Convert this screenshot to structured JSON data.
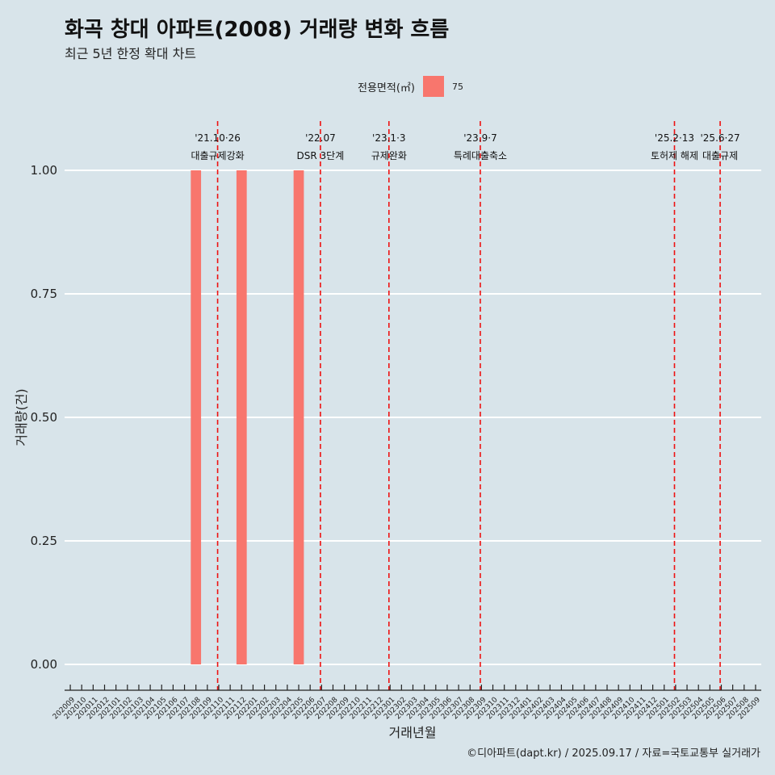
{
  "title": "화곡 창대 아파트(2008) 거래량 변화 흐름",
  "subtitle": "최근 5년 한정 확대 차트",
  "legend": {
    "title": "전용면적(㎡)",
    "label": "75",
    "color": "#f8766d"
  },
  "caption": "©디아파트(dapt.kr) / 2025.09.17 / 자료=국토교통부 실거래가",
  "chart_data": {
    "type": "bar",
    "xlabel": "거래년월",
    "ylabel": "거래량(건)",
    "ylim": [
      0,
      1
    ],
    "yticks": [
      "0.00",
      "0.25",
      "0.50",
      "0.75",
      "1.00"
    ],
    "categories": [
      "202009",
      "202010",
      "202011",
      "202012",
      "202101",
      "202102",
      "202103",
      "202104",
      "202105",
      "202106",
      "202107",
      "202108",
      "202109",
      "202110",
      "202111",
      "202112",
      "202201",
      "202202",
      "202203",
      "202204",
      "202205",
      "202206",
      "202207",
      "202208",
      "202209",
      "202210",
      "202211",
      "202212",
      "202301",
      "202302",
      "202303",
      "202304",
      "202305",
      "202306",
      "202307",
      "202308",
      "202309",
      "202310",
      "202311",
      "202312",
      "202401",
      "202402",
      "202403",
      "202404",
      "202405",
      "202406",
      "202407",
      "202408",
      "202409",
      "202410",
      "202411",
      "202412",
      "202501",
      "202502",
      "202503",
      "202504",
      "202505",
      "202506",
      "202507",
      "202508",
      "202509"
    ],
    "series": [
      {
        "name": "75",
        "values": [
          0,
          0,
          0,
          0,
          0,
          0,
          0,
          0,
          0,
          0,
          0,
          1,
          0,
          0,
          0,
          1,
          0,
          0,
          0,
          0,
          1,
          0,
          0,
          0,
          0,
          0,
          0,
          0,
          0,
          0,
          0,
          0,
          0,
          0,
          0,
          0,
          0,
          0,
          0,
          0,
          0,
          0,
          0,
          0,
          0,
          0,
          0,
          0,
          0,
          0,
          0,
          0,
          0,
          0,
          0,
          0,
          0,
          0,
          0,
          0,
          0
        ]
      }
    ],
    "events": [
      {
        "month": 13.4,
        "date": "'21.10·26",
        "name": "대출규제강화"
      },
      {
        "month": 22.4,
        "date": "'22.07",
        "name": "DSR 3단계"
      },
      {
        "month": 28.4,
        "date": "'23.1·3",
        "name": "규제완화"
      },
      {
        "month": 36.4,
        "date": "'23.9·7",
        "name": "특례대출축소"
      },
      {
        "month": 53.4,
        "date": "'25.2·13",
        "name": "토허제 해제"
      },
      {
        "month": 57.4,
        "date": "'25.6·27",
        "name": "대출규제"
      }
    ]
  }
}
